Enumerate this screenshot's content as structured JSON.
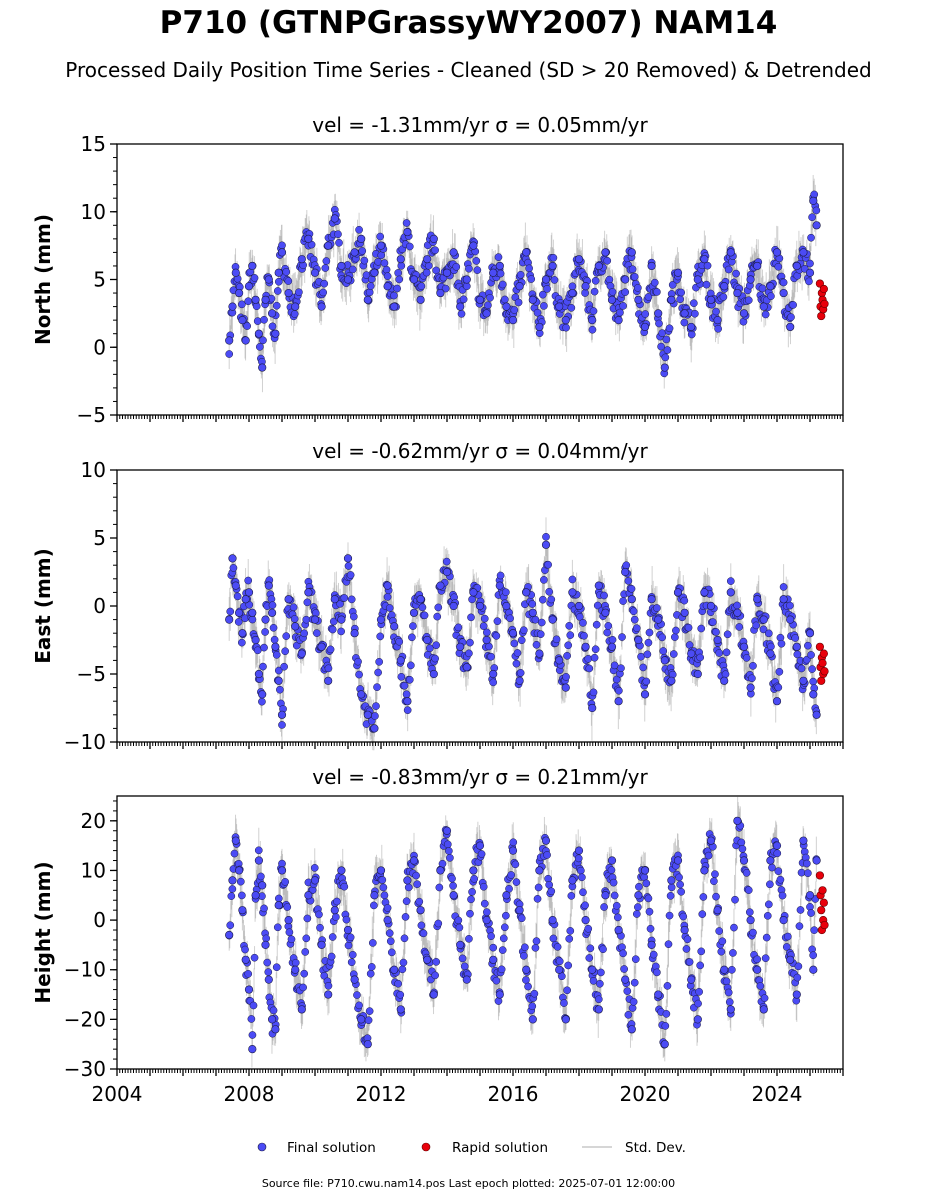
{
  "page": {
    "title": "P710 (GTNPGrassyWY2007) NAM14",
    "subtitle": "Processed Daily Position Time Series - Cleaned (SD > 20 Removed) & Detrended",
    "footer": "Source file: P710.cwu.nam14.pos  Last epoch plotted: 2025-07-01 12:00:00"
  },
  "colors": {
    "final": "#4b4bf5",
    "final_edge": "#1a1a40",
    "rapid": "#e8000b",
    "stddev": "#9a9a9a"
  },
  "chart_data": [
    {
      "type": "scatter",
      "panel": "north",
      "title": "vel = -1.31mm/yr   σ = 0.05mm/yr",
      "ylabel": "North (mm)",
      "xlim": [
        2004,
        2026
      ],
      "ylim": [
        -5,
        15
      ],
      "yticks": [
        -5,
        0,
        5,
        10,
        15
      ],
      "xticks": [
        2004,
        2008,
        2012,
        2016,
        2020,
        2024
      ],
      "series": [
        {
          "name": "Final solution",
          "x": [
            2007.4,
            2007.5,
            2007.6,
            2007.7,
            2007.8,
            2007.9,
            2008.0,
            2008.1,
            2008.2,
            2008.3,
            2008.4,
            2008.5,
            2008.6,
            2008.7,
            2008.8,
            2008.9,
            2009.0,
            2009.2,
            2009.4,
            2009.6,
            2009.8,
            2010.0,
            2010.2,
            2010.4,
            2010.6,
            2010.8,
            2011.0,
            2011.2,
            2011.4,
            2011.6,
            2011.8,
            2012.0,
            2012.2,
            2012.4,
            2012.6,
            2012.8,
            2013.0,
            2013.2,
            2013.4,
            2013.6,
            2013.8,
            2014.0,
            2014.2,
            2014.4,
            2014.6,
            2014.8,
            2015.0,
            2015.2,
            2015.4,
            2015.6,
            2015.8,
            2016.0,
            2016.2,
            2016.4,
            2016.6,
            2016.8,
            2017.0,
            2017.2,
            2017.4,
            2017.6,
            2017.8,
            2018.0,
            2018.2,
            2018.4,
            2018.6,
            2018.8,
            2019.0,
            2019.2,
            2019.4,
            2019.6,
            2019.8,
            2020.0,
            2020.2,
            2020.4,
            2020.6,
            2020.8,
            2021.0,
            2021.2,
            2021.4,
            2021.6,
            2021.8,
            2022.0,
            2022.2,
            2022.4,
            2022.6,
            2022.8,
            2023.0,
            2023.2,
            2023.4,
            2023.6,
            2023.8,
            2024.0,
            2024.2,
            2024.4,
            2024.6,
            2024.8,
            2025.0,
            2025.1,
            2025.2
          ],
          "y": [
            0.5,
            3.0,
            5.5,
            4.0,
            2.0,
            0.5,
            4.5,
            6.0,
            3.5,
            1.0,
            -1.5,
            3.5,
            5.0,
            2.5,
            1.0,
            5.5,
            7.0,
            4.0,
            3.0,
            6.5,
            8.0,
            5.5,
            3.0,
            7.5,
            9.5,
            6.0,
            5.0,
            7.0,
            8.0,
            3.5,
            5.5,
            7.5,
            4.5,
            3.0,
            6.5,
            8.5,
            5.0,
            3.5,
            6.5,
            8.0,
            4.0,
            5.5,
            7.0,
            3.0,
            5.0,
            7.5,
            3.5,
            2.5,
            5.5,
            6.0,
            3.0,
            2.0,
            4.5,
            7.0,
            3.5,
            1.5,
            5.0,
            6.0,
            3.0,
            2.0,
            4.0,
            6.5,
            4.5,
            2.0,
            6.0,
            7.0,
            3.5,
            2.0,
            5.0,
            7.0,
            3.5,
            1.5,
            6.0,
            2.5,
            -1.5,
            3.5,
            5.5,
            2.5,
            1.5,
            5.0,
            6.5,
            3.5,
            2.0,
            4.5,
            7.0,
            4.0,
            2.5,
            5.0,
            6.0,
            3.0,
            4.5,
            7.0,
            4.0,
            1.5,
            6.0,
            7.0,
            5.5,
            10.8,
            9.0
          ]
        },
        {
          "name": "Rapid solution",
          "x": [
            2025.3,
            2025.32,
            2025.34,
            2025.36,
            2025.38,
            2025.4,
            2025.42,
            2025.44
          ],
          "y": [
            4.7,
            3.0,
            2.3,
            4.0,
            3.5,
            2.8,
            4.3,
            3.2
          ]
        }
      ]
    },
    {
      "type": "scatter",
      "panel": "east",
      "title": "vel = -0.62mm/yr   σ = 0.04mm/yr",
      "ylabel": "East (mm)",
      "xlim": [
        2004,
        2026
      ],
      "ylim": [
        -10,
        10
      ],
      "yticks": [
        -10,
        -5,
        0,
        5,
        10
      ],
      "xticks": [
        2004,
        2008,
        2012,
        2016,
        2020,
        2024
      ],
      "series": [
        {
          "name": "Final solution",
          "x": [
            2007.4,
            2007.5,
            2007.6,
            2007.7,
            2007.8,
            2007.9,
            2008.0,
            2008.1,
            2008.2,
            2008.3,
            2008.4,
            2008.5,
            2008.6,
            2008.7,
            2008.8,
            2008.9,
            2009.0,
            2009.2,
            2009.4,
            2009.6,
            2009.8,
            2010.0,
            2010.2,
            2010.4,
            2010.6,
            2010.8,
            2011.0,
            2011.2,
            2011.4,
            2011.6,
            2011.8,
            2012.0,
            2012.2,
            2012.4,
            2012.6,
            2012.8,
            2013.0,
            2013.2,
            2013.4,
            2013.6,
            2013.8,
            2014.0,
            2014.2,
            2014.4,
            2014.6,
            2014.8,
            2015.0,
            2015.2,
            2015.4,
            2015.6,
            2015.8,
            2016.0,
            2016.2,
            2016.4,
            2016.6,
            2016.8,
            2017.0,
            2017.2,
            2017.4,
            2017.6,
            2017.8,
            2018.0,
            2018.2,
            2018.4,
            2018.6,
            2018.8,
            2019.0,
            2019.2,
            2019.4,
            2019.6,
            2019.8,
            2020.0,
            2020.2,
            2020.4,
            2020.6,
            2020.8,
            2021.0,
            2021.2,
            2021.4,
            2021.6,
            2021.8,
            2022.0,
            2022.2,
            2022.4,
            2022.6,
            2022.8,
            2023.0,
            2023.2,
            2023.4,
            2023.6,
            2023.8,
            2024.0,
            2024.2,
            2024.4,
            2024.6,
            2024.8,
            2025.0,
            2025.1,
            2025.2
          ],
          "y": [
            -1.0,
            3.5,
            1.5,
            -0.5,
            -2.0,
            0.5,
            1.0,
            -0.5,
            -2.5,
            -5.0,
            -6.5,
            -1.0,
            1.5,
            -0.5,
            -3.0,
            -5.5,
            -8.0,
            0.5,
            -1.5,
            -3.5,
            1.0,
            -1.0,
            -3.0,
            -5.5,
            0.5,
            -1.0,
            3.5,
            -2.0,
            -6.5,
            -8.0,
            -9.0,
            -1.0,
            1.5,
            -1.5,
            -4.0,
            -7.0,
            -0.5,
            0.5,
            -2.5,
            -5.0,
            1.5,
            2.5,
            0.0,
            -3.0,
            -4.5,
            1.0,
            0.0,
            -2.5,
            -5.0,
            1.5,
            0.0,
            -2.0,
            -5.5,
            1.0,
            -0.5,
            -3.5,
            4.5,
            -1.0,
            -4.0,
            -6.0,
            1.0,
            0.0,
            -3.0,
            -7.5,
            1.5,
            -0.5,
            -3.0,
            -7.0,
            2.5,
            0.5,
            -2.5,
            -6.5,
            0.5,
            -1.0,
            -4.0,
            -5.5,
            1.0,
            -0.5,
            -3.5,
            -5.0,
            1.0,
            0.0,
            -2.5,
            -5.5,
            1.0,
            -0.5,
            -3.0,
            -6.0,
            0.5,
            -1.0,
            -3.5,
            -7.0,
            0.5,
            -1.0,
            -3.0,
            -5.5,
            -2.0,
            -6.5,
            -8.0
          ]
        },
        {
          "name": "Rapid solution",
          "x": [
            2025.3,
            2025.32,
            2025.34,
            2025.36,
            2025.38,
            2025.4,
            2025.42,
            2025.44
          ],
          "y": [
            -3.0,
            -4.5,
            -5.5,
            -3.8,
            -4.2,
            -5.0,
            -3.5,
            -4.8
          ]
        }
      ]
    },
    {
      "type": "scatter",
      "panel": "height",
      "title": "vel = -0.83mm/yr   σ = 0.21mm/yr",
      "ylabel": "Height (mm)",
      "xlim": [
        2004,
        2026
      ],
      "ylim": [
        -30,
        25
      ],
      "yticks": [
        -30,
        -20,
        -10,
        0,
        10,
        20
      ],
      "xticks": [
        2004,
        2008,
        2012,
        2016,
        2020,
        2024
      ],
      "series": [
        {
          "name": "Final solution",
          "x": [
            2007.4,
            2007.5,
            2007.6,
            2007.7,
            2007.8,
            2007.9,
            2008.0,
            2008.1,
            2008.2,
            2008.3,
            2008.4,
            2008.5,
            2008.6,
            2008.7,
            2008.8,
            2008.9,
            2009.0,
            2009.2,
            2009.4,
            2009.6,
            2009.8,
            2010.0,
            2010.2,
            2010.4,
            2010.6,
            2010.8,
            2011.0,
            2011.2,
            2011.4,
            2011.6,
            2011.8,
            2012.0,
            2012.2,
            2012.4,
            2012.6,
            2012.8,
            2013.0,
            2013.2,
            2013.4,
            2013.6,
            2013.8,
            2014.0,
            2014.2,
            2014.4,
            2014.6,
            2014.8,
            2015.0,
            2015.2,
            2015.4,
            2015.6,
            2015.8,
            2016.0,
            2016.2,
            2016.4,
            2016.6,
            2016.8,
            2017.0,
            2017.2,
            2017.4,
            2017.6,
            2017.8,
            2018.0,
            2018.2,
            2018.4,
            2018.6,
            2018.8,
            2019.0,
            2019.2,
            2019.4,
            2019.6,
            2019.8,
            2020.0,
            2020.2,
            2020.4,
            2020.6,
            2020.8,
            2021.0,
            2021.2,
            2021.4,
            2021.6,
            2021.8,
            2022.0,
            2022.2,
            2022.4,
            2022.6,
            2022.8,
            2023.0,
            2023.2,
            2023.4,
            2023.6,
            2023.8,
            2024.0,
            2024.2,
            2024.4,
            2024.6,
            2024.8,
            2025.0,
            2025.1,
            2025.2
          ],
          "y": [
            -3.0,
            8.0,
            16.0,
            10.0,
            2.0,
            -8.0,
            -14.0,
            -26.0,
            5.0,
            12.0,
            7.0,
            -5.0,
            -12.0,
            -20.0,
            -22.0,
            3.0,
            10.0,
            0.0,
            -10.0,
            -18.0,
            5.0,
            8.0,
            -5.0,
            -15.0,
            2.0,
            10.0,
            -2.0,
            -12.0,
            -20.0,
            -25.0,
            5.0,
            10.0,
            0.0,
            -10.0,
            -18.0,
            8.0,
            12.0,
            2.0,
            -8.0,
            -15.0,
            10.0,
            18.0,
            5.0,
            -5.0,
            -12.0,
            10.0,
            15.0,
            0.0,
            -8.0,
            -15.0,
            5.0,
            14.0,
            2.0,
            -10.0,
            -20.0,
            10.0,
            16.0,
            0.0,
            -10.0,
            -20.0,
            8.0,
            14.0,
            0.0,
            -10.0,
            -18.0,
            5.0,
            12.0,
            -2.0,
            -12.0,
            -22.0,
            5.0,
            10.0,
            -5.0,
            -15.0,
            -25.0,
            8.0,
            12.0,
            -2.0,
            -12.0,
            -20.0,
            10.0,
            16.0,
            2.0,
            -10.0,
            -18.0,
            20.0,
            12.0,
            0.0,
            -10.0,
            -18.0,
            12.0,
            15.0,
            0.0,
            -8.0,
            -15.0,
            16.0,
            5.0,
            -10.0,
            12.0
          ]
        },
        {
          "name": "Rapid solution",
          "x": [
            2025.3,
            2025.32,
            2025.34,
            2025.36,
            2025.38,
            2025.4,
            2025.42,
            2025.44
          ],
          "y": [
            9.0,
            5.0,
            2.0,
            -2.0,
            6.0,
            0.0,
            3.5,
            -1.0
          ]
        }
      ]
    }
  ],
  "legend": [
    {
      "label": "Final solution",
      "kind": "final-marker"
    },
    {
      "label": "Rapid solution",
      "kind": "rapid-marker"
    },
    {
      "label": "Std. Dev.",
      "kind": "stddev-line"
    }
  ]
}
